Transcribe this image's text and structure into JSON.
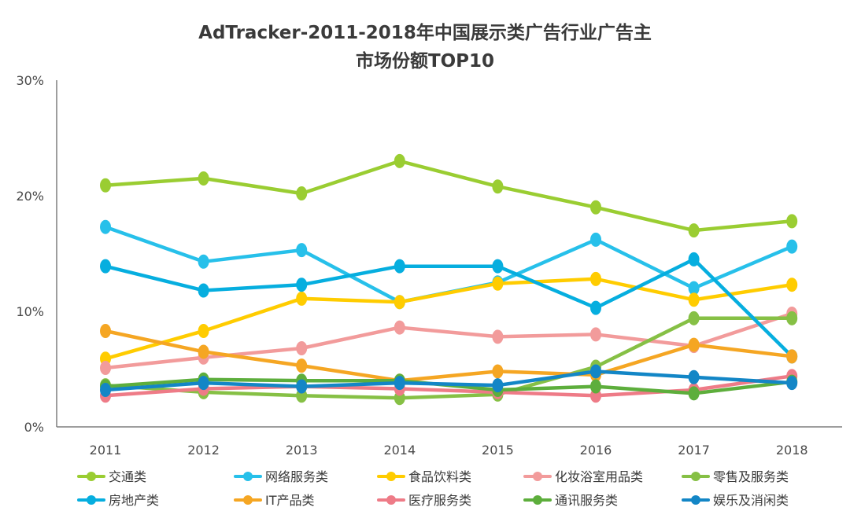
{
  "chart_data": {
    "type": "line",
    "title_lines": [
      "AdTracker-2011-2018年中国展示类广告行业广告主",
      "市场份额TOP10"
    ],
    "x": [
      "2011",
      "2012",
      "2013",
      "2014",
      "2015",
      "2016",
      "2017",
      "2018"
    ],
    "ylim": [
      0,
      30
    ],
    "yticks": [
      "0%",
      "10%",
      "20%",
      "30%"
    ],
    "grid": false,
    "legend_position": "bottom",
    "series": [
      {
        "name": "交通类",
        "color": "#9ACD32",
        "values": [
          20.9,
          21.5,
          20.2,
          23.0,
          20.8,
          19.0,
          17.0,
          17.8
        ]
      },
      {
        "name": "网络服务类",
        "color": "#27C0EA",
        "values": [
          17.3,
          14.3,
          15.3,
          10.8,
          12.5,
          16.2,
          12.0,
          15.6
        ]
      },
      {
        "name": "食品饮料类",
        "color": "#FFCC00",
        "values": [
          5.9,
          8.3,
          11.1,
          10.8,
          12.4,
          12.8,
          11.0,
          12.3
        ]
      },
      {
        "name": "化妆浴室用品类",
        "color": "#F29B9B",
        "values": [
          5.1,
          6.0,
          6.8,
          8.6,
          7.8,
          8.0,
          7.0,
          9.8
        ]
      },
      {
        "name": "零售及服务类",
        "color": "#86C045",
        "values": [
          3.6,
          3.0,
          2.7,
          2.5,
          2.8,
          5.2,
          9.4,
          9.4
        ]
      },
      {
        "name": "房地产类",
        "color": "#06AEDF",
        "values": [
          13.9,
          11.8,
          12.3,
          13.9,
          13.9,
          10.3,
          14.5,
          6.1
        ]
      },
      {
        "name": "IT产品类",
        "color": "#F5A623",
        "values": [
          8.3,
          6.5,
          5.3,
          4.0,
          4.8,
          4.5,
          7.1,
          6.1
        ]
      },
      {
        "name": "医疗服务类",
        "color": "#EE7B87",
        "values": [
          2.7,
          3.3,
          3.5,
          3.3,
          3.0,
          2.7,
          3.2,
          4.4
        ]
      },
      {
        "name": "通讯服务类",
        "color": "#5DAE3C",
        "values": [
          3.5,
          4.1,
          4.0,
          4.0,
          3.2,
          3.5,
          2.9,
          3.9
        ]
      },
      {
        "name": "娱乐及消闲类",
        "color": "#1386C6",
        "values": [
          3.2,
          3.8,
          3.5,
          3.8,
          3.6,
          4.8,
          4.3,
          3.8
        ]
      }
    ]
  }
}
